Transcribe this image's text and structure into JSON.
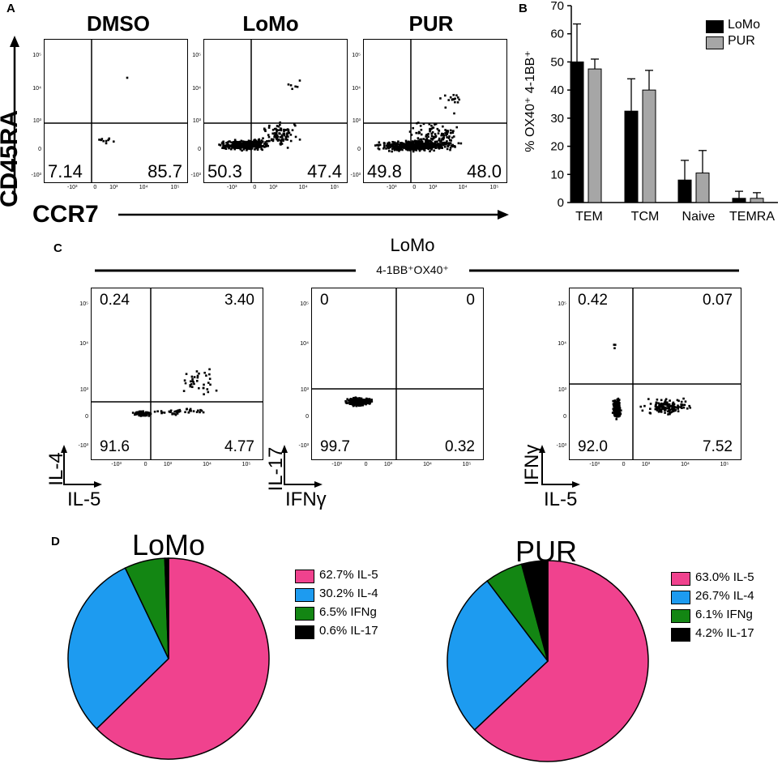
{
  "panel_labels": {
    "a": "A",
    "b": "B",
    "c": "C",
    "d": "D"
  },
  "panelA": {
    "plots": [
      {
        "title": "DMSO",
        "q_ll": "7.14",
        "q_lr": "85.7"
      },
      {
        "title": "LoMo",
        "q_ll": "50.3",
        "q_lr": "47.4"
      },
      {
        "title": "PUR",
        "q_ll": "49.8",
        "q_lr": "48.0"
      }
    ],
    "y_axis": "CD45RA",
    "x_axis": "CCR7",
    "y_ticks": [
      "10⁵",
      "10⁴",
      "10³",
      "0",
      "-10³"
    ],
    "x_ticks": [
      "-10³",
      "0",
      "10³",
      "10⁴",
      "10⁵"
    ]
  },
  "panelC": {
    "title": "LoMo",
    "subtitle": "4-1BB⁺OX40⁺",
    "plots": [
      {
        "q_ul": "0.24",
        "q_ur": "3.40",
        "q_ll": "91.6",
        "q_lr": "4.77",
        "y_label": "IL-4",
        "x_label": "IL-5"
      },
      {
        "q_ul": "0",
        "q_ur": "0",
        "q_ll": "99.7",
        "q_lr": "0.32",
        "y_label": "IL-17",
        "x_label": "IFNγ"
      },
      {
        "q_ul": "0.42",
        "q_ur": "0.07",
        "q_ll": "92.0",
        "q_lr": "7.52",
        "y_label": "IFNγ",
        "x_label": "IL-5"
      }
    ]
  },
  "chart_data": [
    {
      "type": "bar",
      "title": "",
      "ylabel": "% OX40⁺ 4-1BB⁺",
      "xlabel": "",
      "ylim": [
        0,
        70
      ],
      "yticks": [
        0,
        10,
        20,
        30,
        40,
        50,
        60,
        70
      ],
      "categories": [
        "TEM",
        "TCM",
        "Naive",
        "TEMRA"
      ],
      "series": [
        {
          "name": "LoMo",
          "color": "#000000",
          "values": [
            50,
            32.5,
            8,
            1.5
          ],
          "errors": [
            13.5,
            11.5,
            7,
            2.5
          ]
        },
        {
          "name": "PUR",
          "color": "#a6a6a6",
          "values": [
            47.5,
            40,
            10.5,
            1.5
          ],
          "errors": [
            3.5,
            7,
            8,
            2
          ]
        }
      ],
      "legend": "top-right"
    },
    {
      "type": "pie",
      "title": "LoMo",
      "labels": [
        "62.7% IL-5",
        "30.2% IL-4",
        "6.5% IFNg",
        "0.6% IL-17"
      ],
      "values": [
        62.7,
        30.2,
        6.5,
        0.6
      ],
      "colors": [
        "#f0428e",
        "#1d9bf0",
        "#138613",
        "#000000"
      ]
    },
    {
      "type": "pie",
      "title": "PUR",
      "labels": [
        "63.0% IL-5",
        "26.7% IL-4",
        "6.1% IFNg",
        "4.2% IL-17"
      ],
      "values": [
        63.0,
        26.7,
        6.1,
        4.2
      ],
      "colors": [
        "#f0428e",
        "#1d9bf0",
        "#138613",
        "#000000"
      ]
    }
  ]
}
